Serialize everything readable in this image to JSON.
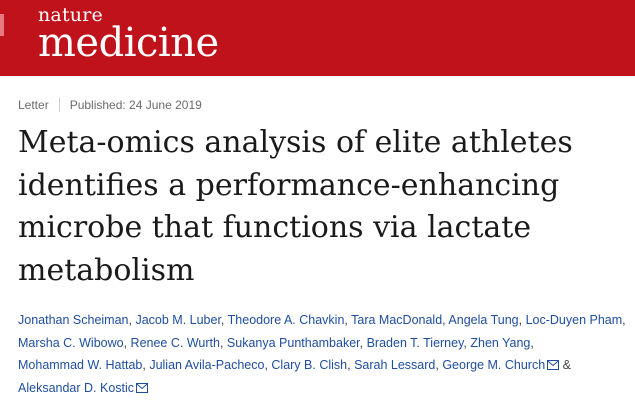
{
  "header": {
    "logo_top": "nature",
    "logo_bottom": "medicine",
    "brand_color": "#c0121a"
  },
  "meta": {
    "type": "Letter",
    "published": "Published: 24 June 2019"
  },
  "title": "Meta-omics analysis of elite athletes identifies a performance-enhancing microbe that functions via lactate metabolism",
  "authors": {
    "names": [
      "Jonathan Scheiman",
      "Jacob M. Luber",
      "Theodore A. Chavkin",
      "Tara MacDonald",
      "Angela Tung",
      "Loc-Duyen Pham",
      "Marsha C. Wibowo",
      "Renee C. Wurth",
      "Sukanya Punthambaker",
      "Braden T. Tierney",
      "Zhen Yang",
      "Mohammad W. Hattab",
      "Julian Avila-Pacheco",
      "Clary B. Clish",
      "Sarah Lessard",
      "George M. Church",
      "Aleksandar D. Kostic"
    ],
    "ampersand": "&",
    "link_color": "#1f4ea0",
    "mail_icon": "envelope-icon"
  }
}
